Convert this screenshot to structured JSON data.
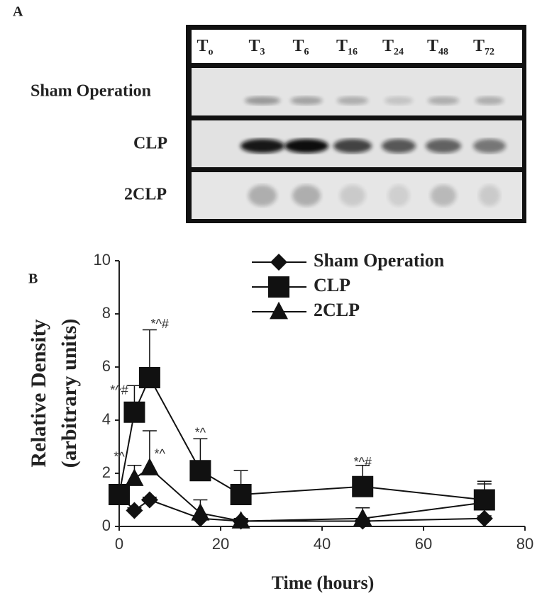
{
  "blot": {
    "panel_label": "A",
    "lanes": [
      {
        "label": "T",
        "sub": "o"
      },
      {
        "label": "T",
        "sub": "3"
      },
      {
        "label": "T",
        "sub": "6"
      },
      {
        "label": "T",
        "sub": "16"
      },
      {
        "label": "T",
        "sub": "24"
      },
      {
        "label": "T",
        "sub": "48"
      },
      {
        "label": "T",
        "sub": "72"
      }
    ],
    "rows": [
      "Sham Operation",
      "CLP",
      "2CLP"
    ]
  },
  "chart_data": {
    "type": "line",
    "panel_label": "B",
    "xlabel": "Time (hours)",
    "ylabel": [
      "Relative Density",
      "(arbitrary units)"
    ],
    "x": [
      0,
      3,
      6,
      16,
      24,
      48,
      72
    ],
    "series": [
      {
        "name": "Sham Operation",
        "marker": "diamond",
        "color": "#111",
        "values": [
          1.2,
          0.6,
          1.0,
          0.3,
          0.2,
          0.2,
          0.3
        ],
        "errors": [
          0,
          0.1,
          0.1,
          0.1,
          0.05,
          0.1,
          0.1
        ]
      },
      {
        "name": "CLP",
        "marker": "square",
        "color": "#111",
        "values": [
          1.2,
          4.3,
          5.6,
          2.1,
          1.2,
          1.5,
          1.0
        ],
        "errors": [
          0,
          1.0,
          1.8,
          1.2,
          0.9,
          0.8,
          0.7
        ]
      },
      {
        "name": "2CLP",
        "marker": "triangle",
        "color": "#111",
        "values": [
          1.2,
          1.8,
          2.2,
          0.5,
          0.2,
          0.3,
          0.9
        ],
        "errors": [
          0,
          0.5,
          1.4,
          0.5,
          0.1,
          0.4,
          0.7
        ]
      }
    ],
    "annotations": [
      {
        "text": "*^#",
        "x": 0,
        "y": 5.1
      },
      {
        "text": "*^",
        "x": 0,
        "y": 2.6
      },
      {
        "text": "*^#",
        "x": 8,
        "y": 7.6
      },
      {
        "text": "*^",
        "x": 8,
        "y": 2.7
      },
      {
        "text": "*^",
        "x": 16,
        "y": 3.5
      },
      {
        "text": "*^#",
        "x": 48,
        "y": 2.4
      }
    ],
    "xlim": [
      0,
      80
    ],
    "xticks": [
      0,
      20,
      40,
      60,
      80
    ],
    "ylim": [
      0,
      10
    ],
    "yticks": [
      0,
      2,
      4,
      6,
      8,
      10
    ],
    "legend": "top"
  }
}
